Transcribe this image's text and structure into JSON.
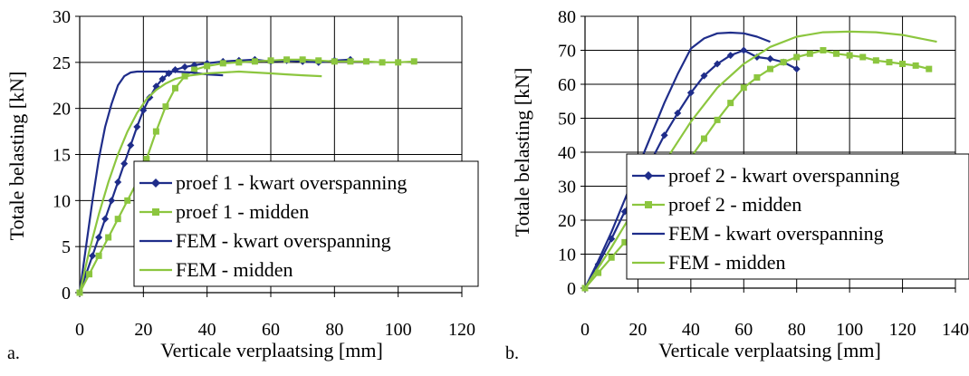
{
  "chart_data": [
    {
      "type": "line",
      "panel_label": "a.",
      "xlabel": "Verticale verplaatsing [mm]",
      "ylabel": "Totale belasting [kN]",
      "xlim": [
        0,
        120
      ],
      "ylim": [
        0,
        30
      ],
      "x_ticks": [
        0,
        20,
        40,
        60,
        80,
        100,
        120
      ],
      "y_ticks": [
        0,
        5,
        10,
        15,
        20,
        25,
        30
      ],
      "x_tick_labels": [
        "0",
        "20",
        "40",
        "60",
        "80",
        "100",
        "120"
      ],
      "y_tick_labels": [
        "0",
        "5",
        "10",
        "15",
        "20",
        "25",
        "30"
      ],
      "grid": true,
      "legend_position": "bottom-right",
      "series": [
        {
          "name": "proef 1 - kwart overspanning",
          "color": "#1F2D8A",
          "marker": "diamond",
          "x": [
            0,
            2,
            4,
            6,
            8,
            10,
            12,
            14,
            16,
            18,
            20,
            22,
            24,
            26,
            28,
            30,
            33,
            36,
            40,
            45,
            50,
            55,
            60,
            65,
            70,
            75,
            80,
            85
          ],
          "y": [
            0,
            2,
            4,
            6,
            8,
            10,
            12,
            14,
            16,
            18,
            19.8,
            21.2,
            22.4,
            23.2,
            23.8,
            24.2,
            24.5,
            24.7,
            24.9,
            25.1,
            25.2,
            25.3,
            25.1,
            25.2,
            25.1,
            25.0,
            25.2,
            25.3
          ]
        },
        {
          "name": "proef 1 - midden",
          "color": "#8CC63F",
          "marker": "square",
          "x": [
            0,
            3,
            6,
            9,
            12,
            15,
            18,
            21,
            24,
            27,
            30,
            33,
            36,
            40,
            45,
            50,
            55,
            60,
            65,
            70,
            75,
            80,
            85,
            90,
            95,
            100,
            105
          ],
          "y": [
            0,
            2,
            4,
            6,
            8,
            10,
            12,
            14.5,
            17.5,
            20.2,
            22.2,
            23.5,
            24.2,
            24.6,
            24.9,
            25.0,
            25.1,
            25.2,
            25.3,
            25.3,
            25.2,
            25.1,
            25.1,
            25.1,
            25.0,
            25.0,
            25.1
          ]
        },
        {
          "name": "FEM - kwart overspanning",
          "color": "#1F2D8A",
          "marker": "none",
          "x": [
            0,
            2,
            4,
            6,
            8,
            10,
            12,
            14,
            16,
            18,
            20,
            23,
            26,
            30,
            35,
            40,
            45
          ],
          "y": [
            0,
            5,
            10,
            14.5,
            18,
            20.5,
            22.5,
            23.5,
            23.9,
            24.0,
            24.0,
            24.0,
            24.0,
            24.0,
            23.9,
            23.7,
            23.6
          ]
        },
        {
          "name": "FEM - midden",
          "color": "#8CC63F",
          "marker": "none",
          "x": [
            0,
            3,
            6,
            9,
            12,
            15,
            18,
            21,
            24,
            27,
            30,
            35,
            40,
            45,
            50,
            55,
            60,
            65,
            70,
            76
          ],
          "y": [
            0,
            4.5,
            8.5,
            12,
            15,
            17.5,
            19.5,
            21,
            22,
            22.7,
            23.2,
            23.6,
            23.8,
            23.9,
            24.0,
            23.9,
            23.8,
            23.7,
            23.6,
            23.5
          ]
        }
      ]
    },
    {
      "type": "line",
      "panel_label": "b.",
      "xlabel": "Verticale verplaatsing [mm]",
      "ylabel": "Totale belasting [kN]",
      "xlim": [
        0,
        140
      ],
      "ylim": [
        0,
        80
      ],
      "x_ticks": [
        0,
        20,
        40,
        60,
        80,
        100,
        120,
        140
      ],
      "y_ticks": [
        0,
        10,
        20,
        30,
        40,
        50,
        60,
        70,
        80
      ],
      "x_tick_labels": [
        "0",
        "20",
        "40",
        "60",
        "80",
        "100",
        "120",
        "140"
      ],
      "y_tick_labels": [
        "0",
        "10",
        "20",
        "30",
        "40",
        "50",
        "60",
        "70",
        "80"
      ],
      "grid": true,
      "legend_position": "bottom-right",
      "series": [
        {
          "name": "proef 2 - kwart overspanning",
          "color": "#1F2D8A",
          "marker": "diamond",
          "x": [
            0,
            5,
            10,
            15,
            20,
            25,
            30,
            35,
            40,
            45,
            50,
            55,
            60,
            65,
            70,
            75,
            80
          ],
          "y": [
            0,
            7,
            14.5,
            22.5,
            30,
            37.5,
            45,
            51.5,
            57.5,
            62.5,
            66,
            68.5,
            70,
            68,
            67.5,
            66.5,
            64.5
          ]
        },
        {
          "name": "proef 2 - midden",
          "color": "#8CC63F",
          "marker": "square",
          "x": [
            0,
            5,
            10,
            15,
            20,
            25,
            30,
            35,
            40,
            45,
            50,
            55,
            60,
            65,
            70,
            75,
            80,
            85,
            90,
            95,
            100,
            105,
            110,
            115,
            120,
            125,
            130
          ],
          "y": [
            0,
            4.5,
            9,
            13.5,
            18,
            22.5,
            27.5,
            33,
            38.5,
            44,
            49.5,
            54.5,
            59,
            62,
            64.5,
            66.5,
            68,
            69,
            70,
            69,
            68.5,
            68,
            67,
            66.5,
            66,
            65.5,
            64.5
          ]
        },
        {
          "name": "FEM - kwart overspanning",
          "color": "#1F2D8A",
          "marker": "none",
          "x": [
            0,
            5,
            10,
            15,
            20,
            25,
            30,
            35,
            40,
            45,
            50,
            55,
            60,
            65,
            70
          ],
          "y": [
            0,
            8,
            16.5,
            26,
            35.5,
            45,
            54.5,
            63,
            70.5,
            73.5,
            75,
            75.2,
            75,
            74,
            72.5
          ]
        },
        {
          "name": "FEM - midden",
          "color": "#8CC63F",
          "marker": "none",
          "x": [
            0,
            10,
            20,
            30,
            40,
            50,
            60,
            70,
            80,
            90,
            100,
            110,
            120,
            133
          ],
          "y": [
            0,
            12,
            25,
            37,
            49,
            59,
            66,
            71,
            74,
            75.3,
            75.5,
            75.3,
            74.5,
            72.5
          ]
        }
      ]
    }
  ]
}
